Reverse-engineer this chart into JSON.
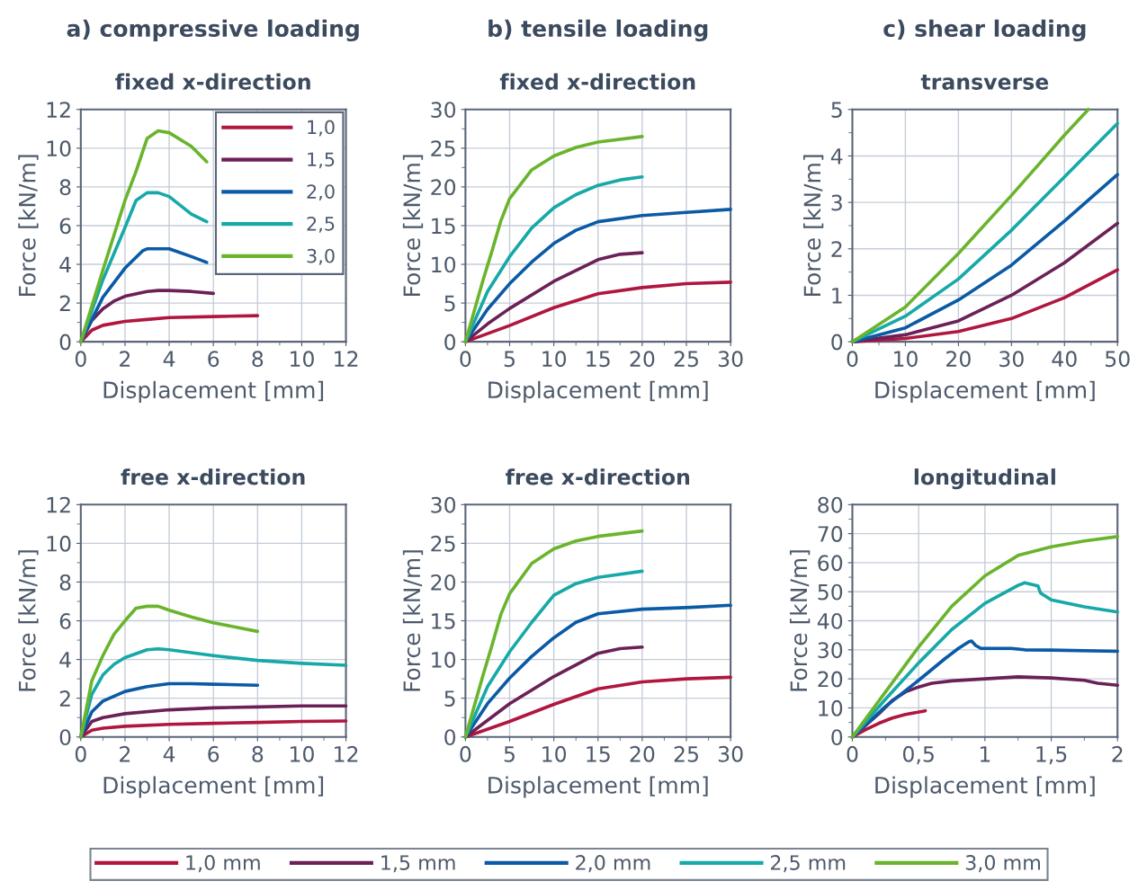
{
  "chart_data": [
    {
      "type": "line",
      "title": "fixed x-direction",
      "annotations": [
        "a) compressive loading"
      ],
      "xlabel": "Displacement [mm]",
      "ylabel": "Force [kN/m]",
      "xlim": [
        0,
        12
      ],
      "xticks": [
        0,
        2,
        4,
        6,
        8,
        10,
        12
      ],
      "ylim": [
        0,
        12
      ],
      "yticks": [
        0,
        2,
        4,
        6,
        8,
        10,
        12
      ],
      "grid": true,
      "legend": "top right",
      "series": [
        {
          "name": "1,0",
          "color": "#b0173f",
          "x": [
            0,
            0.5,
            1,
            2,
            3,
            4,
            6,
            8
          ],
          "values": [
            0,
            0.6,
            0.85,
            1.05,
            1.15,
            1.25,
            1.3,
            1.35
          ]
        },
        {
          "name": "1,5",
          "color": "#6b2157",
          "x": [
            0,
            0.5,
            1,
            1.5,
            2,
            3,
            3.5,
            4,
            5,
            6
          ],
          "values": [
            0,
            1.1,
            1.7,
            2.1,
            2.35,
            2.6,
            2.65,
            2.65,
            2.6,
            2.5
          ]
        },
        {
          "name": "2,0",
          "color": "#0a5aa5",
          "x": [
            0,
            1,
            2,
            2.8,
            3,
            4,
            5,
            5.7
          ],
          "values": [
            0,
            2.3,
            3.8,
            4.7,
            4.8,
            4.8,
            4.4,
            4.1
          ]
        },
        {
          "name": "2,5",
          "color": "#17a8a8",
          "x": [
            0,
            1,
            2,
            2.5,
            3,
            3.5,
            4,
            5,
            5.7
          ],
          "values": [
            0,
            3.2,
            5.9,
            7.3,
            7.7,
            7.7,
            7.5,
            6.6,
            6.2
          ]
        },
        {
          "name": "3,0",
          "color": "#6ab42d",
          "x": [
            0,
            1,
            2,
            2.5,
            3,
            3.5,
            4,
            5,
            5.7
          ],
          "values": [
            0,
            3.7,
            7.3,
            8.8,
            10.5,
            10.9,
            10.8,
            10.1,
            9.3
          ]
        }
      ]
    },
    {
      "type": "line",
      "title": "fixed x-direction",
      "annotations": [
        "b) tensile loading"
      ],
      "xlabel": "Displacement [mm]",
      "ylabel": "Force [kN/m]",
      "xlim": [
        0,
        30
      ],
      "xticks": [
        0,
        5,
        10,
        15,
        20,
        25,
        30
      ],
      "ylim": [
        0,
        30
      ],
      "yticks": [
        0,
        5,
        10,
        15,
        20,
        25,
        30
      ],
      "grid": true,
      "series": [
        {
          "color": "#b0173f",
          "x": [
            0,
            5,
            10,
            15,
            20,
            25,
            30
          ],
          "values": [
            0,
            2.1,
            4.4,
            6.2,
            7.0,
            7.5,
            7.7
          ]
        },
        {
          "color": "#6b2157",
          "x": [
            0,
            2.5,
            5,
            10,
            15,
            17.5,
            20
          ],
          "values": [
            0,
            2.3,
            4.3,
            7.8,
            10.6,
            11.3,
            11.5
          ]
        },
        {
          "color": "#0a5aa5",
          "x": [
            0,
            2.5,
            5,
            7.5,
            10,
            12.5,
            15,
            20,
            25,
            30
          ],
          "values": [
            0,
            4.2,
            7.5,
            10.3,
            12.7,
            14.4,
            15.5,
            16.3,
            16.7,
            17.1
          ]
        },
        {
          "color": "#17a8a8",
          "x": [
            0,
            2.5,
            5,
            7.5,
            10,
            12.5,
            15,
            17.5,
            20
          ],
          "values": [
            0,
            6.5,
            11,
            14.7,
            17.3,
            19,
            20.2,
            20.9,
            21.3
          ]
        },
        {
          "color": "#6ab42d",
          "x": [
            0,
            2,
            3,
            4,
            5,
            7.5,
            10,
            12.5,
            15,
            20
          ],
          "values": [
            0,
            8,
            11.7,
            15.6,
            18.5,
            22.2,
            24.0,
            25.1,
            25.8,
            26.5
          ]
        }
      ]
    },
    {
      "type": "line",
      "title": "transverse",
      "annotations": [
        "c) shear loading"
      ],
      "xlabel": "Displacement [mm]",
      "ylabel": "Force [kN/m]",
      "xlim": [
        0,
        50
      ],
      "xticks": [
        0,
        10,
        20,
        30,
        40,
        50
      ],
      "ylim": [
        0,
        5
      ],
      "yticks": [
        0,
        1,
        2,
        3,
        4,
        5
      ],
      "grid": true,
      "series": [
        {
          "color": "#b0173f",
          "x": [
            0,
            10,
            20,
            30,
            40,
            50
          ],
          "values": [
            0,
            0.07,
            0.22,
            0.5,
            0.95,
            1.55
          ]
        },
        {
          "color": "#6b2157",
          "x": [
            0,
            10,
            20,
            30,
            40,
            50
          ],
          "values": [
            0,
            0.15,
            0.45,
            1.0,
            1.7,
            2.55
          ]
        },
        {
          "color": "#0a5aa5",
          "x": [
            0,
            10,
            20,
            30,
            40,
            50
          ],
          "values": [
            0,
            0.3,
            0.9,
            1.65,
            2.6,
            3.6
          ]
        },
        {
          "color": "#17a8a8",
          "x": [
            0,
            10,
            20,
            30,
            40,
            50
          ],
          "values": [
            0,
            0.55,
            1.35,
            2.4,
            3.55,
            4.7
          ]
        },
        {
          "color": "#6ab42d",
          "x": [
            0,
            10,
            20,
            30,
            40,
            44.5
          ],
          "values": [
            0,
            0.75,
            1.9,
            3.15,
            4.45,
            5.0
          ]
        }
      ]
    },
    {
      "type": "line",
      "title": "free x-direction",
      "xlabel": "Displacement [mm]",
      "ylabel": "Force [kN/m]",
      "xlim": [
        0,
        12
      ],
      "xticks": [
        0,
        2,
        4,
        6,
        8,
        10,
        12
      ],
      "ylim": [
        0,
        12
      ],
      "yticks": [
        0,
        2,
        4,
        6,
        8,
        10,
        12
      ],
      "grid": true,
      "series": [
        {
          "color": "#b0173f",
          "x": [
            0,
            0.5,
            1,
            2,
            4,
            6,
            8,
            10,
            12
          ],
          "values": [
            0,
            0.35,
            0.45,
            0.55,
            0.65,
            0.7,
            0.75,
            0.8,
            0.82
          ]
        },
        {
          "color": "#6b2157",
          "x": [
            0,
            0.5,
            1,
            2,
            4,
            6,
            8,
            10,
            12
          ],
          "values": [
            0,
            0.8,
            1.0,
            1.2,
            1.4,
            1.5,
            1.55,
            1.6,
            1.6
          ]
        },
        {
          "color": "#0a5aa5",
          "x": [
            0,
            0.5,
            1,
            2,
            3,
            4,
            5,
            6,
            8
          ],
          "values": [
            0,
            1.3,
            1.85,
            2.35,
            2.6,
            2.75,
            2.75,
            2.72,
            2.67
          ]
        },
        {
          "color": "#17a8a8",
          "x": [
            0,
            0.5,
            1,
            1.5,
            2,
            3,
            3.5,
            4,
            6,
            8,
            10,
            12
          ],
          "values": [
            0,
            2.2,
            3.2,
            3.75,
            4.1,
            4.5,
            4.55,
            4.5,
            4.2,
            3.95,
            3.8,
            3.7
          ]
        },
        {
          "color": "#6ab42d",
          "x": [
            0,
            0.5,
            1,
            1.5,
            2,
            2.5,
            3,
            3.5,
            4,
            5,
            6,
            8
          ],
          "values": [
            0,
            2.9,
            4.2,
            5.3,
            6.0,
            6.65,
            6.75,
            6.75,
            6.55,
            6.2,
            5.9,
            5.45
          ]
        }
      ]
    },
    {
      "type": "line",
      "title": "free x-direction",
      "xlabel": "Displacement [mm]",
      "ylabel": "Force [kN/m]",
      "xlim": [
        0,
        30
      ],
      "xticks": [
        0,
        5,
        10,
        15,
        20,
        25,
        30
      ],
      "ylim": [
        0,
        30
      ],
      "yticks": [
        0,
        5,
        10,
        15,
        20,
        25,
        30
      ],
      "grid": true,
      "series": [
        {
          "color": "#b0173f",
          "x": [
            0,
            5,
            10,
            15,
            20,
            25,
            30
          ],
          "values": [
            0,
            2.0,
            4.2,
            6.2,
            7.1,
            7.5,
            7.7
          ]
        },
        {
          "color": "#6b2157",
          "x": [
            0,
            5,
            10,
            15,
            17.5,
            20
          ],
          "values": [
            0,
            4.3,
            7.8,
            10.8,
            11.4,
            11.6
          ]
        },
        {
          "color": "#0a5aa5",
          "x": [
            0,
            2.5,
            5,
            7.5,
            10,
            12.5,
            15,
            20,
            25,
            30
          ],
          "values": [
            0,
            4.3,
            7.6,
            10.4,
            12.8,
            14.8,
            15.9,
            16.5,
            16.7,
            17.0
          ]
        },
        {
          "color": "#17a8a8",
          "x": [
            0,
            2.5,
            5,
            7.5,
            10,
            12.5,
            15,
            20
          ],
          "values": [
            0,
            6.5,
            11,
            14.8,
            18.3,
            19.8,
            20.6,
            21.4
          ]
        },
        {
          "color": "#6ab42d",
          "x": [
            0,
            2,
            3,
            4,
            5,
            7.5,
            10,
            12.5,
            15,
            20
          ],
          "values": [
            0,
            8,
            11.8,
            15.8,
            18.5,
            22.4,
            24.3,
            25.3,
            25.9,
            26.6
          ]
        }
      ]
    },
    {
      "type": "line",
      "title": "longitudinal",
      "xlabel": "Displacement [mm]",
      "ylabel": "Force [kN/m]",
      "xlim": [
        0,
        2
      ],
      "xticks": [
        0,
        {
          "value": 0.5,
          "label": "0,5"
        },
        1,
        {
          "value": 1.5,
          "label": "1,5"
        },
        2
      ],
      "ylim": [
        0,
        80
      ],
      "yticks": [
        0,
        10,
        20,
        30,
        40,
        50,
        60,
        70,
        80
      ],
      "grid": true,
      "legend": "bottom",
      "series": [
        {
          "name": "1,0 mm",
          "color": "#b0173f",
          "x": [
            0,
            0.1,
            0.2,
            0.3,
            0.4,
            0.55
          ],
          "values": [
            0,
            2.5,
            4.7,
            6.5,
            7.7,
            9.0
          ]
        },
        {
          "name": "1,5 mm",
          "color": "#6b2157",
          "x": [
            0,
            0.1,
            0.2,
            0.3,
            0.4,
            0.5,
            0.6,
            0.75,
            1,
            1.25,
            1.5,
            1.75,
            1.85,
            2
          ],
          "values": [
            0,
            4,
            8,
            12.5,
            15.5,
            17.2,
            18.5,
            19.3,
            20,
            20.7,
            20.3,
            19.5,
            18.5,
            17.8
          ]
        },
        {
          "name": "2,0 mm",
          "color": "#0a5aa5",
          "x": [
            0,
            0.25,
            0.5,
            0.7,
            0.8,
            0.88,
            0.9,
            0.93,
            0.97,
            1.2,
            1.3,
            1.5,
            2
          ],
          "values": [
            0,
            10.5,
            19.5,
            27,
            30.5,
            32.8,
            33.0,
            31.5,
            30.5,
            30.5,
            30.0,
            29.9,
            29.5
          ]
        },
        {
          "name": "2,5 mm",
          "color": "#17a8a8",
          "x": [
            0,
            0.25,
            0.5,
            0.75,
            1,
            1.25,
            1.3,
            1.4,
            1.42,
            1.5,
            1.75,
            2
          ],
          "values": [
            0,
            13,
            25.5,
            37,
            46,
            52.2,
            53.1,
            52,
            49.5,
            47.2,
            44.8,
            43
          ]
        },
        {
          "name": "3,0 mm",
          "color": "#6ab42d",
          "x": [
            0,
            0.25,
            0.5,
            0.75,
            1,
            1.25,
            1.5,
            1.75,
            2
          ],
          "values": [
            0,
            15.5,
            31,
            45,
            55.5,
            62.5,
            65.5,
            67.5,
            69
          ]
        }
      ]
    }
  ]
}
